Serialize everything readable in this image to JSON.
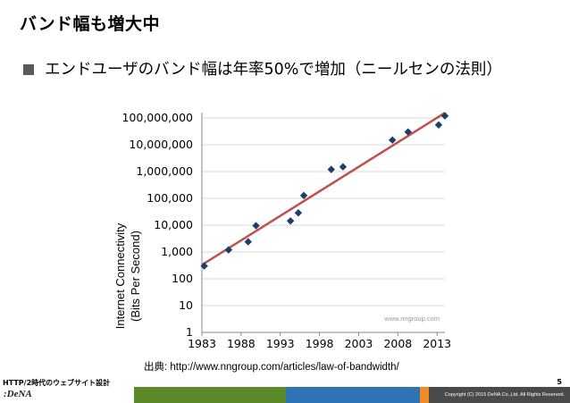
{
  "slide": {
    "title": "バンド幅も増大中",
    "bullet": "エンドユーザのバンド幅は年率50%で増加（ニールセンの法則）"
  },
  "source_note": "出典: http://www.nngroup.com/articles/law-of-bandwidth/",
  "footer": {
    "left_text": "HTTP/2時代のウェブサイト設計",
    "page_number": "5",
    "logo": ":DeNA",
    "copyright": "Copyright (C) 2015 DeNA Co.,Ltd. All Rights Reserved."
  },
  "colors": {
    "marker": "#1f3d6b",
    "trend": "#c0504d",
    "grid": "#d9d9d9",
    "band": [
      "#1e3a6e",
      "#5c8a2a",
      "#2e74b5",
      "#f08a24",
      "#4a4a4a"
    ]
  },
  "chart_data": {
    "type": "scatter",
    "title": "",
    "xlabel": "",
    "ylabel": "Internet Connectivity (Bits Per Second)",
    "ylabel_lines": [
      "Internet Connectivity",
      "(Bits Per Second)"
    ],
    "y_scale": "log",
    "xlim": [
      1983,
      2014
    ],
    "ylim": [
      1,
      100000000
    ],
    "x_ticks": [
      1983,
      1988,
      1993,
      1998,
      2003,
      2008,
      2013
    ],
    "x_tick_labels": [
      "1983",
      "1988",
      "1993",
      "1998",
      "2003",
      "2008",
      "2013"
    ],
    "y_ticks": [
      1,
      10,
      100,
      1000,
      10000,
      100000,
      1000000,
      10000000,
      100000000
    ],
    "y_tick_labels": [
      "1",
      "10",
      "100",
      "1,000",
      "10,000",
      "100,000",
      "1,000,000",
      "10,000,000",
      "100,000,000"
    ],
    "watermark": "www.nngroup.com",
    "points": [
      {
        "x": 1983.3,
        "y": 300
      },
      {
        "x": 1986.4,
        "y": 1200
      },
      {
        "x": 1988.9,
        "y": 2400
      },
      {
        "x": 1989.9,
        "y": 9600
      },
      {
        "x": 1994.3,
        "y": 14400
      },
      {
        "x": 1995.3,
        "y": 28800
      },
      {
        "x": 1996.0,
        "y": 128000
      },
      {
        "x": 1999.5,
        "y": 1200000
      },
      {
        "x": 2001.0,
        "y": 1500000
      },
      {
        "x": 2007.3,
        "y": 15000000
      },
      {
        "x": 2009.3,
        "y": 30000000
      },
      {
        "x": 2013.2,
        "y": 55000000
      },
      {
        "x": 2014.0,
        "y": 120000000
      }
    ],
    "trend": {
      "x": [
        1983,
        2014
      ],
      "y": [
        330,
        155000000
      ]
    }
  }
}
